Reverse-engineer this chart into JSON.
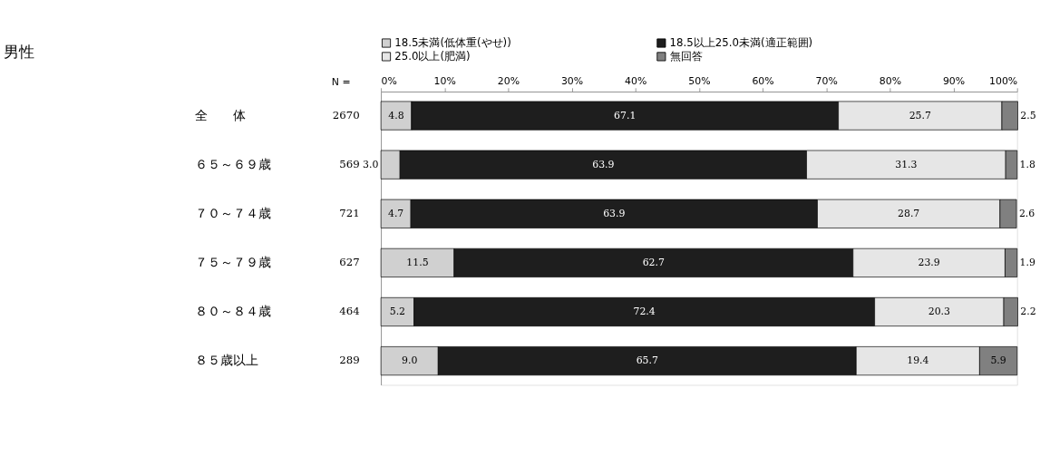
{
  "chart_data": {
    "type": "bar",
    "orientation": "horizontal",
    "stacked": true,
    "title": "男性",
    "categories": [
      "全　　体",
      "６５～６９歳",
      "７０～７４歳",
      "７５～７９歳",
      "８０～８４歳",
      "８５歳以上"
    ],
    "series": [
      {
        "name": "18.5未満(低体重(やせ))",
        "color": "#d0d0d0",
        "values": [
          4.8,
          3.0,
          4.7,
          11.5,
          5.2,
          9.0
        ],
        "value_labels": [
          "4.8",
          "3.0",
          "4.7",
          "11.5",
          "5.2",
          "9.0"
        ]
      },
      {
        "name": "18.5以上25.0未満(適正範囲)",
        "color": "#1e1e1e",
        "values": [
          67.1,
          63.9,
          63.9,
          62.7,
          72.4,
          65.7
        ]
      },
      {
        "name": "25.0以上(肥満)",
        "color": "#e6e6e6",
        "values": [
          25.7,
          31.3,
          28.7,
          23.9,
          20.3,
          19.4
        ]
      },
      {
        "name": "無回答",
        "color": "#808080",
        "values": [
          2.5,
          1.8,
          2.6,
          1.9,
          2.2,
          5.9
        ]
      }
    ],
    "xlim": [
      0,
      100
    ],
    "xticks": [
      {
        "value": 0,
        "label": "0%"
      },
      {
        "value": 10,
        "label": "10%"
      },
      {
        "value": 20,
        "label": "20%"
      },
      {
        "value": 30,
        "label": "30%"
      },
      {
        "value": 40,
        "label": "40%"
      },
      {
        "value": 50,
        "label": "50%"
      },
      {
        "value": 60,
        "label": "60%"
      },
      {
        "value": 70,
        "label": "70%"
      },
      {
        "value": 80,
        "label": "80%"
      },
      {
        "value": 90,
        "label": "90%"
      },
      {
        "value": 100,
        "label": "100%"
      }
    ],
    "annotations": [
      "N =",
      "2670",
      "569",
      "721",
      "627",
      "464",
      "289"
    ],
    "data_labels": true,
    "grid": false,
    "legend": "top"
  }
}
